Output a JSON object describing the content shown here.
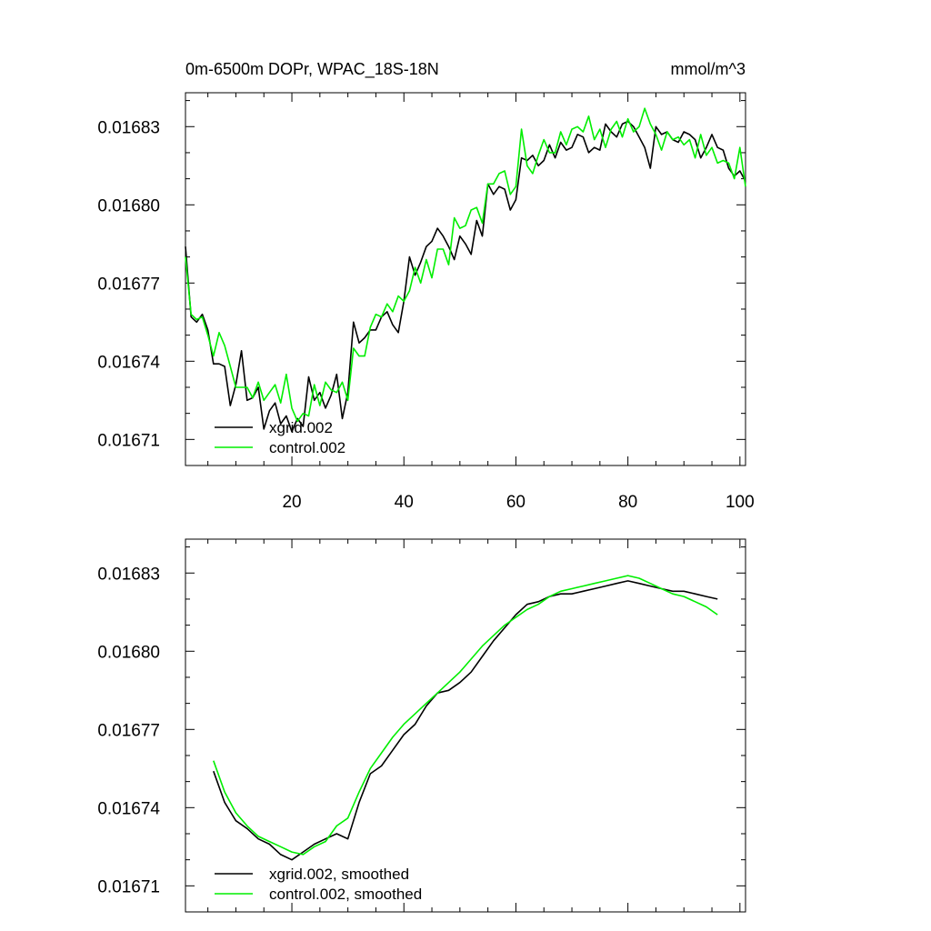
{
  "chart_data": [
    {
      "type": "line",
      "title": "0m-6500m DOPr, WPAC_18S-18N",
      "units": "mmol/m^3",
      "xlim": [
        1,
        101
      ],
      "ylim": [
        0.0167,
        0.016843
      ],
      "xticks": [
        20,
        40,
        60,
        80,
        100
      ],
      "xtick_labels": [
        "20",
        "40",
        "60",
        "80",
        "100"
      ],
      "yticks": [
        0.01671,
        0.01674,
        0.01677,
        0.0168,
        0.01683
      ],
      "ytick_labels": [
        "0.01671",
        "0.01674",
        "0.01677",
        "0.01680",
        "0.01683"
      ],
      "legend_position": "bottom-left",
      "series": [
        {
          "name": "xgrid.002",
          "color": "#000000",
          "x": [
            1,
            2,
            3,
            4,
            5,
            6,
            7,
            8,
            9,
            10,
            11,
            12,
            13,
            14,
            15,
            16,
            17,
            18,
            19,
            20,
            21,
            22,
            23,
            24,
            25,
            26,
            27,
            28,
            29,
            30,
            31,
            32,
            33,
            34,
            35,
            36,
            37,
            38,
            39,
            40,
            41,
            42,
            43,
            44,
            45,
            46,
            47,
            48,
            49,
            50,
            51,
            52,
            53,
            54,
            55,
            56,
            57,
            58,
            59,
            60,
            61,
            62,
            63,
            64,
            65,
            66,
            67,
            68,
            69,
            70,
            71,
            72,
            73,
            74,
            75,
            76,
            77,
            78,
            79,
            80,
            81,
            82,
            83,
            84,
            85,
            86,
            87,
            88,
            89,
            90,
            91,
            92,
            93,
            94,
            95,
            96,
            97,
            98,
            99,
            100,
            101
          ],
          "y": [
            0.016784,
            0.016757,
            0.016755,
            0.016758,
            0.016752,
            0.016739,
            0.016739,
            0.016738,
            0.016723,
            0.016731,
            0.016744,
            0.016725,
            0.016726,
            0.01673,
            0.016714,
            0.016721,
            0.016724,
            0.016716,
            0.016719,
            0.016713,
            0.016718,
            0.016715,
            0.016734,
            0.016725,
            0.016728,
            0.016722,
            0.016727,
            0.016735,
            0.016718,
            0.016728,
            0.016755,
            0.016747,
            0.016749,
            0.016752,
            0.016752,
            0.016757,
            0.016759,
            0.016754,
            0.016751,
            0.016763,
            0.01678,
            0.016773,
            0.016778,
            0.016784,
            0.016786,
            0.016791,
            0.016788,
            0.016784,
            0.016779,
            0.016788,
            0.016785,
            0.016781,
            0.016794,
            0.016788,
            0.016808,
            0.016804,
            0.016807,
            0.016806,
            0.016798,
            0.016802,
            0.016818,
            0.016817,
            0.016819,
            0.016815,
            0.016817,
            0.016823,
            0.016818,
            0.016824,
            0.016821,
            0.016822,
            0.016827,
            0.016826,
            0.01682,
            0.016822,
            0.016821,
            0.016831,
            0.016828,
            0.016826,
            0.016831,
            0.016832,
            0.01683,
            0.016826,
            0.016822,
            0.016814,
            0.01683,
            0.016827,
            0.016828,
            0.016825,
            0.016824,
            0.016828,
            0.016827,
            0.016825,
            0.016818,
            0.016822,
            0.016827,
            0.016822,
            0.016821,
            0.016814,
            0.016811,
            0.016813,
            0.016809
          ]
        },
        {
          "name": "control.002",
          "color": "#00ee00",
          "x": [
            1,
            2,
            3,
            4,
            5,
            6,
            7,
            8,
            9,
            10,
            11,
            12,
            13,
            14,
            15,
            16,
            17,
            18,
            19,
            20,
            21,
            22,
            23,
            24,
            25,
            26,
            27,
            28,
            29,
            30,
            31,
            32,
            33,
            34,
            35,
            36,
            37,
            38,
            39,
            40,
            41,
            42,
            43,
            44,
            45,
            46,
            47,
            48,
            49,
            50,
            51,
            52,
            53,
            54,
            55,
            56,
            57,
            58,
            59,
            60,
            61,
            62,
            63,
            64,
            65,
            66,
            67,
            68,
            69,
            70,
            71,
            72,
            73,
            74,
            75,
            76,
            77,
            78,
            79,
            80,
            81,
            82,
            83,
            84,
            85,
            86,
            87,
            88,
            89,
            90,
            91,
            92,
            93,
            94,
            95,
            96,
            97,
            98,
            99,
            100,
            101
          ],
          "y": [
            0.01678,
            0.016758,
            0.016756,
            0.016757,
            0.01675,
            0.016742,
            0.016751,
            0.016746,
            0.016738,
            0.01673,
            0.01673,
            0.01673,
            0.016726,
            0.016732,
            0.016725,
            0.016728,
            0.016731,
            0.016724,
            0.016735,
            0.016722,
            0.016717,
            0.01672,
            0.016719,
            0.016731,
            0.016723,
            0.016732,
            0.016729,
            0.016728,
            0.016732,
            0.016725,
            0.016745,
            0.016742,
            0.016742,
            0.016753,
            0.016758,
            0.016757,
            0.016762,
            0.016759,
            0.016765,
            0.016763,
            0.016767,
            0.016776,
            0.01677,
            0.016779,
            0.016772,
            0.016783,
            0.016783,
            0.016777,
            0.016795,
            0.016791,
            0.016792,
            0.016798,
            0.016799,
            0.016793,
            0.016808,
            0.016808,
            0.016812,
            0.016813,
            0.016804,
            0.016807,
            0.016829,
            0.016815,
            0.016812,
            0.016819,
            0.016825,
            0.01682,
            0.01682,
            0.016828,
            0.016823,
            0.016829,
            0.01683,
            0.016828,
            0.016834,
            0.016825,
            0.016829,
            0.016822,
            0.016829,
            0.016832,
            0.016826,
            0.016833,
            0.016828,
            0.01683,
            0.016837,
            0.016831,
            0.016827,
            0.016821,
            0.016828,
            0.016825,
            0.016826,
            0.016823,
            0.016825,
            0.016818,
            0.016827,
            0.016819,
            0.016822,
            0.016816,
            0.016817,
            0.016816,
            0.01681,
            0.016822,
            0.016807
          ]
        }
      ]
    },
    {
      "type": "line",
      "xlim": [
        1,
        101
      ],
      "ylim": [
        0.0167,
        0.016843
      ],
      "xticks": [
        20,
        40,
        60,
        80,
        100
      ],
      "xtick_labels": [],
      "yticks": [
        0.01671,
        0.01674,
        0.01677,
        0.0168,
        0.01683
      ],
      "ytick_labels": [
        "0.01671",
        "0.01674",
        "0.01677",
        "0.01680",
        "0.01683"
      ],
      "legend_position": "bottom-left",
      "series": [
        {
          "name": "xgrid.002, smoothed",
          "color": "#000000",
          "x": [
            6,
            8,
            10,
            12,
            14,
            16,
            18,
            20,
            22,
            24,
            26,
            28,
            30,
            32,
            34,
            36,
            38,
            40,
            42,
            44,
            46,
            48,
            50,
            52,
            54,
            56,
            58,
            60,
            62,
            64,
            66,
            68,
            70,
            72,
            74,
            76,
            78,
            80,
            82,
            84,
            86,
            88,
            90,
            92,
            94,
            96
          ],
          "y": [
            0.016754,
            0.016742,
            0.016735,
            0.016732,
            0.016728,
            0.016726,
            0.016722,
            0.01672,
            0.016723,
            0.016726,
            0.016728,
            0.01673,
            0.016728,
            0.016742,
            0.016753,
            0.016756,
            0.016762,
            0.016768,
            0.016772,
            0.016779,
            0.016784,
            0.016785,
            0.016788,
            0.016792,
            0.016798,
            0.016804,
            0.016809,
            0.016814,
            0.016818,
            0.016819,
            0.016821,
            0.016822,
            0.016822,
            0.016823,
            0.016824,
            0.016825,
            0.016826,
            0.016827,
            0.016826,
            0.016825,
            0.016824,
            0.016823,
            0.016823,
            0.016822,
            0.016821,
            0.01682
          ]
        },
        {
          "name": "control.002, smoothed",
          "color": "#00ee00",
          "x": [
            6,
            8,
            10,
            12,
            14,
            16,
            18,
            20,
            22,
            24,
            26,
            28,
            30,
            32,
            34,
            36,
            38,
            40,
            42,
            44,
            46,
            48,
            50,
            52,
            54,
            56,
            58,
            60,
            62,
            64,
            66,
            68,
            70,
            72,
            74,
            76,
            78,
            80,
            82,
            84,
            86,
            88,
            90,
            92,
            94,
            96
          ],
          "y": [
            0.016758,
            0.016746,
            0.016738,
            0.016733,
            0.016729,
            0.016727,
            0.016725,
            0.016723,
            0.016722,
            0.016725,
            0.016727,
            0.016733,
            0.016736,
            0.016746,
            0.016755,
            0.016761,
            0.016767,
            0.016772,
            0.016776,
            0.01678,
            0.016784,
            0.016788,
            0.016792,
            0.016797,
            0.016802,
            0.016806,
            0.01681,
            0.016813,
            0.016816,
            0.016818,
            0.016821,
            0.016823,
            0.016824,
            0.016825,
            0.016826,
            0.016827,
            0.016828,
            0.016829,
            0.016828,
            0.016826,
            0.016824,
            0.016822,
            0.016821,
            0.016819,
            0.016817,
            0.016814
          ]
        }
      ]
    }
  ]
}
